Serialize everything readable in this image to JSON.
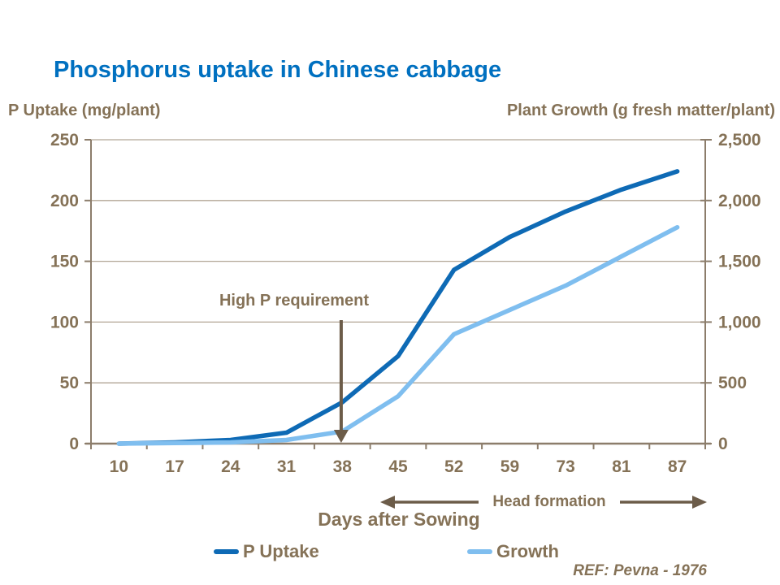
{
  "title": "Phosphorus uptake in Chinese cabbage",
  "left_axis_title": "P Uptake (mg/plant)",
  "right_axis_title": "Plant Growth (g fresh matter/plant)",
  "x_axis_title": "Days after Sowing",
  "annotation_label": "High P requirement",
  "head_formation_label": "Head formation",
  "reference": "REF: Pevna - 1976",
  "legend": [
    {
      "label": "P Uptake",
      "color": "#0E6AB5"
    },
    {
      "label": "Growth",
      "color": "#7FBEEF"
    }
  ],
  "colors": {
    "title_blue": "#0070C0",
    "text_brown": "#857257",
    "axis_line": "#8C7D6B",
    "gridline": "#B2A696",
    "annotation_arrow": "#6C5C49",
    "p_uptake_line": "#0E6AB5",
    "growth_line": "#7FBEEF"
  },
  "chart_data": {
    "type": "line",
    "title": "Phosphorus uptake in Chinese cabbage",
    "xlabel": "Days after Sowing",
    "categories": [
      10,
      17,
      24,
      31,
      38,
      45,
      52,
      59,
      73,
      81,
      87
    ],
    "series": [
      {
        "name": "P Uptake",
        "axis": "left",
        "color": "#0E6AB5",
        "values": [
          0,
          1,
          3,
          9,
          34,
          72,
          143,
          170,
          191,
          209,
          224
        ]
      },
      {
        "name": "Growth",
        "axis": "right",
        "color": "#7FBEEF",
        "values": [
          0,
          5,
          10,
          30,
          100,
          390,
          900,
          1100,
          1300,
          1540,
          1780
        ]
      }
    ],
    "left_axis": {
      "label": "P Uptake (mg/plant)",
      "min": 0,
      "max": 250,
      "step": 50,
      "tick_labels": [
        "0",
        "50",
        "100",
        "150",
        "200",
        "250"
      ]
    },
    "right_axis": {
      "label": "Plant Growth (g fresh matter/plant)",
      "min": 0,
      "max": 2500,
      "step": 500,
      "tick_labels": [
        "0",
        "500",
        "1,000",
        "1,500",
        "2,000",
        "2,500"
      ]
    },
    "grid": true,
    "legend_position": "bottom",
    "annotations": [
      {
        "type": "down-arrow",
        "text": "High P requirement",
        "at_category": 38
      },
      {
        "type": "double-arrow-span",
        "text": "Head formation",
        "from_category": 45,
        "to_category": 87
      }
    ]
  }
}
